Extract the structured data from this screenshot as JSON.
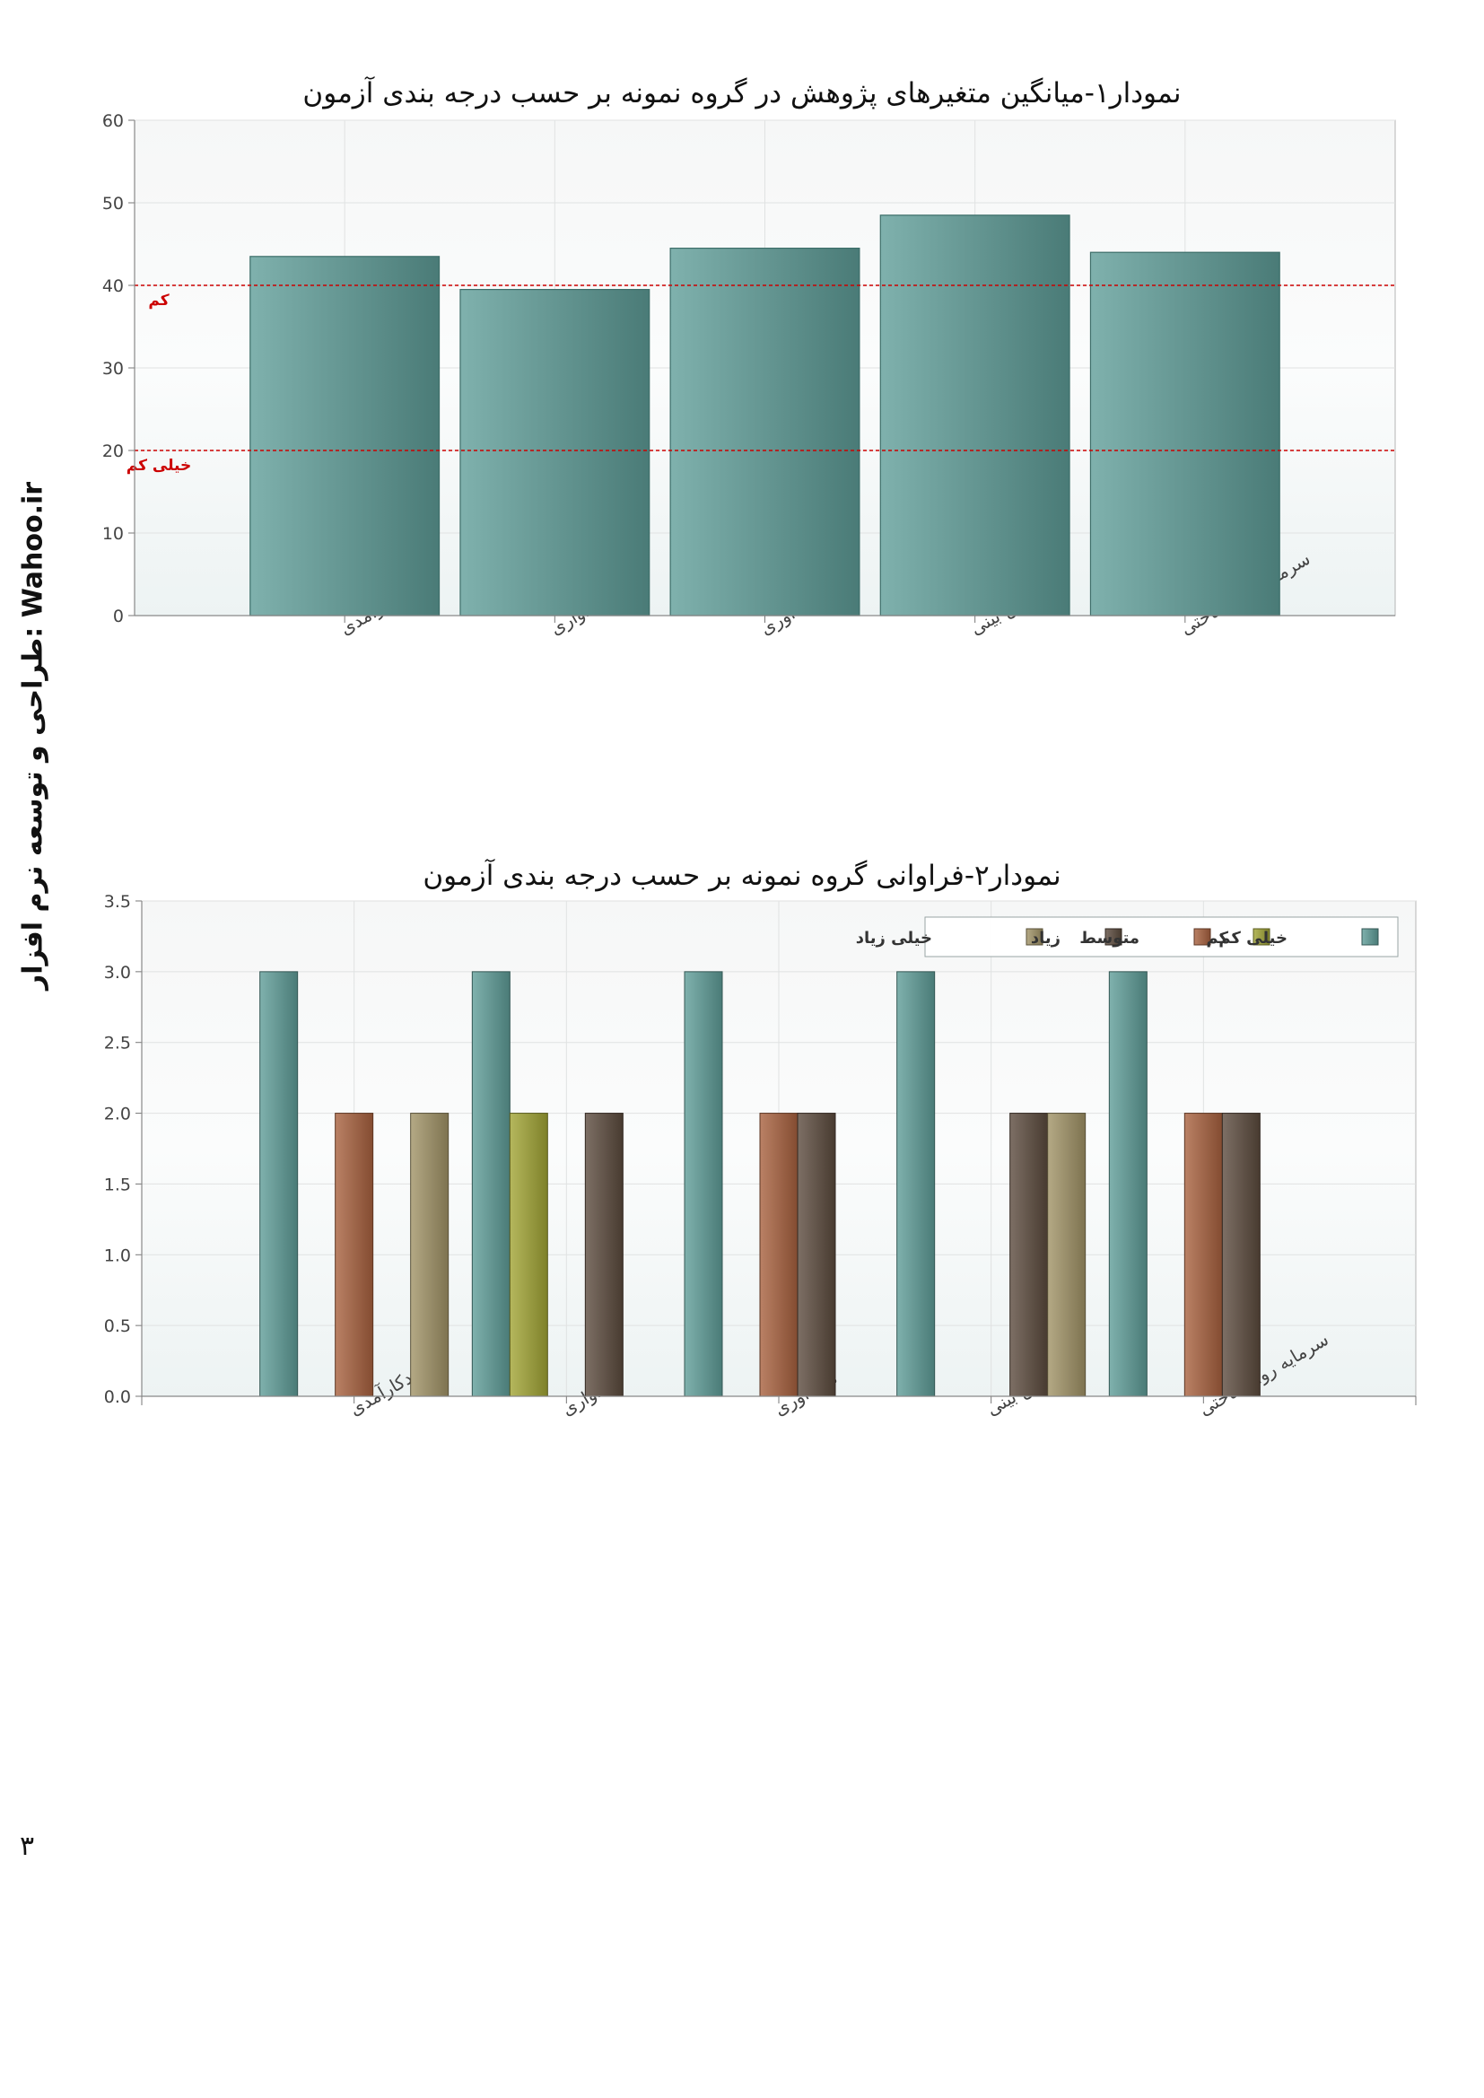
{
  "page": {
    "side_text": "طراحی و توسعه نرم افزار: Wahoo.ir",
    "page_number": "۳"
  },
  "chart_data": [
    {
      "type": "bar",
      "title": "نمودار۱-میانگین متغیرهای پژوهش در گروه نمونه بر حسب درجه بندی آزمون",
      "categories": [
        "خودکارآمدی",
        "امیدواری",
        "تاب آوری",
        "خوش بینی",
        "سرمایه روانشناختی"
      ],
      "values": [
        43.5,
        39.5,
        44.5,
        48.5,
        44
      ],
      "ylim": [
        0,
        60
      ],
      "yticks": [
        "0",
        "10",
        "20",
        "30",
        "40",
        "50",
        "60"
      ],
      "reference_lines": [
        {
          "value": 40,
          "label": "کم",
          "color": "#cc0000"
        },
        {
          "value": 20,
          "label": "خیلی کم",
          "color": "#cc0000"
        }
      ],
      "bar_color": "#5f9e98",
      "grid": true
    },
    {
      "type": "bar",
      "title": "نمودار۲-فراوانی گروه نمونه بر حسب درجه بندی آزمون",
      "categories": [
        "خودکارآمدی",
        "امیدواری",
        "تاب آوری",
        "خوش بینی",
        "سرمایه روانشناختی"
      ],
      "series": [
        {
          "name": "خیلی کم",
          "color": "#5f9e98",
          "values": [
            3,
            3,
            3,
            3,
            3
          ]
        },
        {
          "name": "کم",
          "color": "#a2a535",
          "values": [
            0,
            2,
            0,
            0,
            0
          ]
        },
        {
          "name": "متوسط",
          "color": "#a9623f",
          "values": [
            2,
            0,
            2,
            0,
            2
          ]
        },
        {
          "name": "زیاد",
          "color": "#5c4b3e",
          "values": [
            0,
            2,
            2,
            2,
            2
          ]
        },
        {
          "name": "خیلی زیاد",
          "color": "#a19466",
          "values": [
            2,
            0,
            0,
            2,
            0
          ]
        }
      ],
      "ylim": [
        0,
        3.5
      ],
      "yticks": [
        "0.0",
        "0.5",
        "1.0",
        "1.5",
        "2.0",
        "2.5",
        "3.0",
        "3.5"
      ],
      "legend": "top-right",
      "grid": true
    }
  ]
}
